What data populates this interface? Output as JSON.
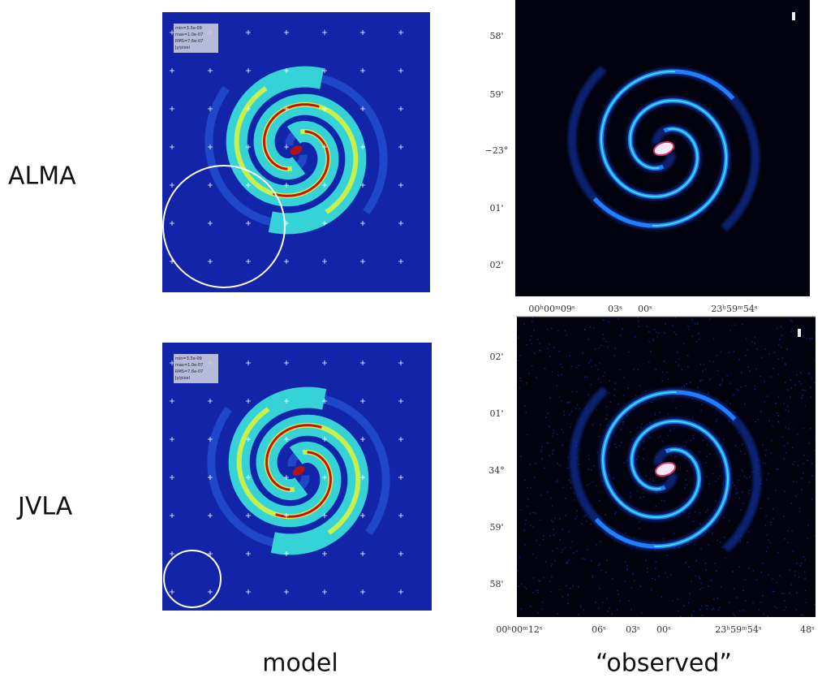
{
  "rows": [
    {
      "label": "ALMA",
      "model_info": [
        "min=3.3e-09",
        "max=1.0e-07",
        "RMS=7.6e-07",
        "Jy/pixel"
      ],
      "observed_y_ticks": [
        "58'",
        "59'",
        "−23°",
        "01'",
        "02'"
      ],
      "observed_x_ticks": [
        "00ʰ00ᵐ09ˢ",
        "03ˢ",
        "00ˢ",
        "23ʰ59ᵐ54ˢ"
      ]
    },
    {
      "label": "JVLA",
      "model_info": [
        "min=3.3e-09",
        "max=1.0e-07",
        "RMS=7.6e-07",
        "Jy/pixel"
      ],
      "observed_y_ticks": [
        "02'",
        "01'",
        "34°",
        "59'",
        "58'"
      ],
      "observed_x_ticks": [
        "00ʰ00ᵐ12ˢ",
        "06ˢ",
        "03ˢ",
        "00ˢ",
        "23ʰ59ᵐ54ˢ",
        "48ˢ"
      ]
    }
  ],
  "columns": [
    "model",
    "“observed”"
  ]
}
